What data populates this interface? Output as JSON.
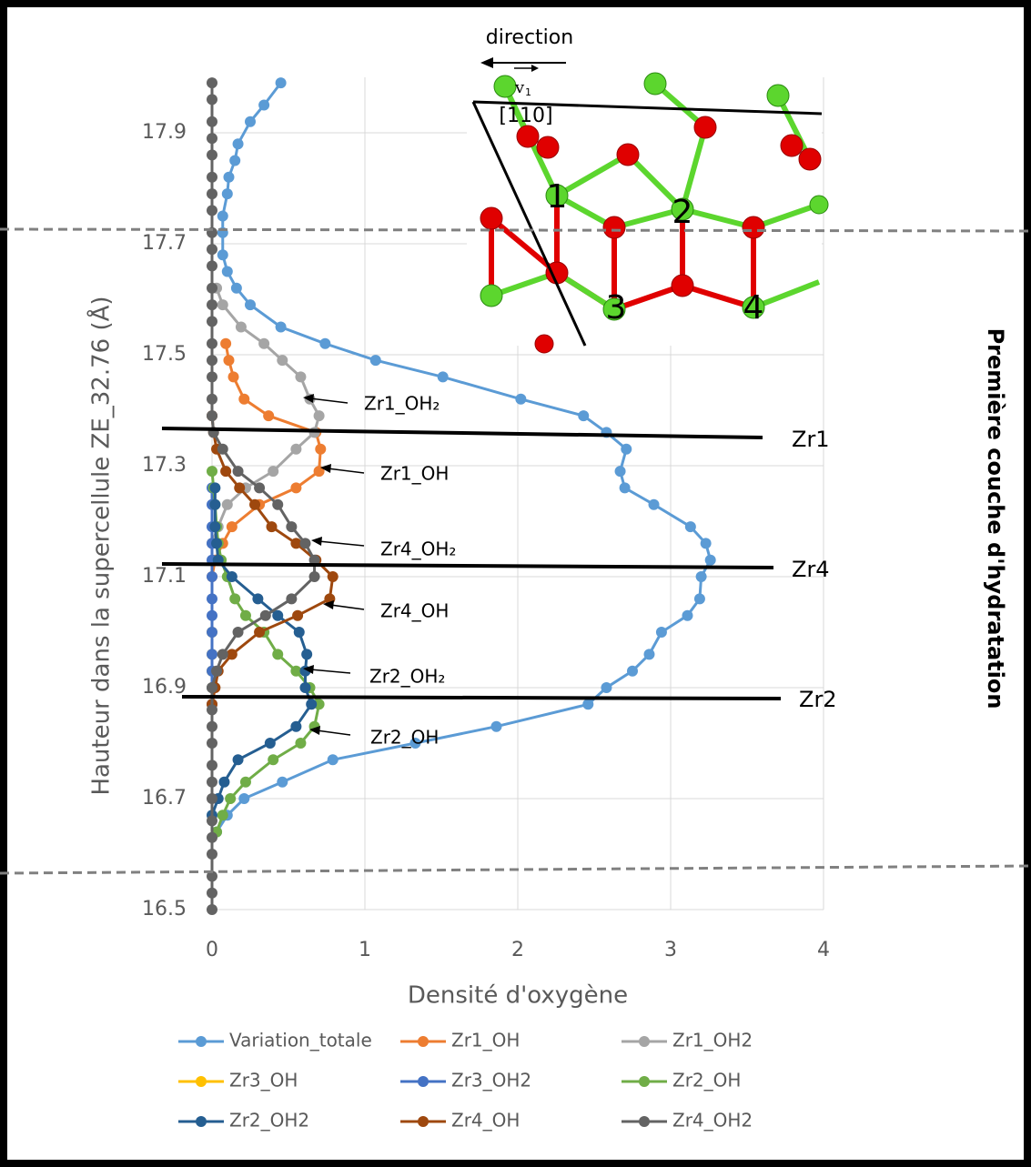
{
  "chart_data": {
    "type": "line",
    "x_label": "Densité d'oxygène",
    "y_label": "Hauteur dans la supercellule ZE_32.76 (Å)",
    "side_label": "Première couche d'hydratation",
    "xlim": [
      0,
      4
    ],
    "xticks": [
      0,
      1,
      2,
      3,
      4
    ],
    "ylim": [
      16.5,
      18.0
    ],
    "yticks": [
      16.5,
      16.7,
      16.9,
      17.1,
      17.3,
      17.5,
      17.7,
      17.9
    ],
    "grid": true,
    "series": [
      {
        "name": "Variation_totale",
        "color": "#5b9bd5",
        "y": [
          17.99,
          17.95,
          17.92,
          17.88,
          17.85,
          17.82,
          17.79,
          17.75,
          17.72,
          17.68,
          17.65,
          17.62,
          17.59,
          17.55,
          17.52,
          17.49,
          17.46,
          17.42,
          17.39,
          17.36,
          17.33,
          17.29,
          17.26,
          17.23,
          17.19,
          17.16,
          17.13,
          17.1,
          17.06,
          17.03,
          17.0,
          16.96,
          16.93,
          16.9,
          16.87,
          16.83,
          16.8,
          16.77,
          16.73,
          16.7,
          16.67,
          16.64
        ],
        "x": [
          0.45,
          0.34,
          0.25,
          0.17,
          0.15,
          0.11,
          0.1,
          0.07,
          0.07,
          0.07,
          0.1,
          0.16,
          0.25,
          0.45,
          0.74,
          1.07,
          1.51,
          2.02,
          2.43,
          2.58,
          2.71,
          2.67,
          2.7,
          2.89,
          3.13,
          3.23,
          3.26,
          3.2,
          3.19,
          3.11,
          2.94,
          2.86,
          2.75,
          2.58,
          2.46,
          1.86,
          1.33,
          0.79,
          0.46,
          0.21,
          0.1,
          0.03
        ]
      },
      {
        "name": "Zr1_OH",
        "color": "#ed7d31",
        "y": [
          17.52,
          17.49,
          17.46,
          17.42,
          17.39,
          17.36,
          17.33,
          17.29,
          17.26,
          17.23,
          17.19,
          17.16,
          17.13,
          17.1
        ],
        "x": [
          0.09,
          0.11,
          0.14,
          0.21,
          0.37,
          0.68,
          0.71,
          0.7,
          0.55,
          0.31,
          0.13,
          0.07,
          0.02,
          0
        ]
      },
      {
        "name": "Zr1_OH2",
        "color": "#a5a5a5",
        "y": [
          17.62,
          17.59,
          17.55,
          17.52,
          17.49,
          17.46,
          17.42,
          17.39,
          17.36,
          17.33,
          17.29,
          17.26,
          17.23,
          17.19,
          17.16
        ],
        "x": [
          0.03,
          0.07,
          0.19,
          0.34,
          0.46,
          0.58,
          0.64,
          0.7,
          0.67,
          0.55,
          0.4,
          0.22,
          0.1,
          0.04,
          0
        ]
      },
      {
        "name": "Zr3_OH",
        "color": "#ffc000",
        "y": [
          17.0,
          16.96,
          16.93,
          16.9
        ],
        "x": [
          0,
          0,
          0,
          0
        ]
      },
      {
        "name": "Zr3_OH2",
        "color": "#4472c4",
        "y": [
          17.26,
          17.23,
          17.19,
          17.16,
          17.13,
          17.1,
          17.06,
          17.03,
          17.0,
          16.96,
          16.93,
          16.9,
          16.87
        ],
        "x": [
          0,
          0,
          0,
          0,
          0,
          0,
          0,
          0,
          0,
          0,
          0,
          0,
          0
        ]
      },
      {
        "name": "Zr2_OH",
        "color": "#70ad47",
        "y": [
          17.29,
          17.26,
          17.23,
          17.19,
          17.16,
          17.13,
          17.1,
          17.06,
          17.03,
          17.0,
          16.96,
          16.93,
          16.9,
          16.87,
          16.83,
          16.8,
          16.77,
          16.73,
          16.7,
          16.67,
          16.64
        ],
        "x": [
          0,
          0.01,
          0.02,
          0.03,
          0.04,
          0.06,
          0.1,
          0.15,
          0.22,
          0.34,
          0.43,
          0.55,
          0.64,
          0.7,
          0.67,
          0.58,
          0.4,
          0.22,
          0.12,
          0.07,
          0.03
        ]
      },
      {
        "name": "Zr2_OH2",
        "color": "#255e91",
        "y": [
          17.26,
          17.23,
          17.19,
          17.16,
          17.13,
          17.1,
          17.06,
          17.03,
          17.0,
          16.96,
          16.93,
          16.9,
          16.87,
          16.83,
          16.8,
          16.77,
          16.73,
          16.7,
          16.67
        ],
        "x": [
          0.02,
          0.02,
          0.02,
          0.03,
          0.04,
          0.13,
          0.3,
          0.43,
          0.57,
          0.62,
          0.61,
          0.61,
          0.65,
          0.55,
          0.38,
          0.17,
          0.08,
          0.04,
          0
        ]
      },
      {
        "name": "Zr4_OH",
        "color": "#9e480e",
        "y": [
          17.39,
          17.36,
          17.33,
          17.29,
          17.26,
          17.23,
          17.19,
          17.16,
          17.13,
          17.1,
          17.06,
          17.03,
          17.0,
          16.96,
          16.93,
          16.9,
          16.87
        ],
        "x": [
          0,
          0.01,
          0.03,
          0.09,
          0.18,
          0.28,
          0.39,
          0.55,
          0.68,
          0.79,
          0.77,
          0.56,
          0.31,
          0.13,
          0.04,
          0.02,
          0
        ]
      },
      {
        "name": "Zr4_OH2",
        "color": "#636363",
        "y": [
          16.5,
          16.53,
          16.56,
          16.6,
          16.63,
          16.66,
          16.7,
          16.73,
          16.76,
          16.8,
          16.83,
          16.86,
          16.9,
          16.93,
          16.96,
          17.0,
          17.03,
          17.06,
          17.1,
          17.13,
          17.16,
          17.19,
          17.23,
          17.26,
          17.29,
          17.33,
          17.36,
          17.39,
          17.42,
          17.46,
          17.49,
          17.52,
          17.56,
          17.59,
          17.62,
          17.66,
          17.69,
          17.72,
          17.76,
          17.79,
          17.82,
          17.86,
          17.89,
          17.92,
          17.96,
          17.99
        ],
        "x": [
          0,
          0,
          0,
          0,
          0,
          0,
          0,
          0,
          0,
          0,
          0,
          0,
          0,
          0.03,
          0.07,
          0.17,
          0.35,
          0.52,
          0.67,
          0.67,
          0.61,
          0.52,
          0.43,
          0.31,
          0.17,
          0.07,
          0.01,
          0,
          0,
          0,
          0,
          0,
          0,
          0,
          0,
          0,
          0,
          0,
          0,
          0,
          0,
          0,
          0,
          0,
          0,
          0
        ]
      }
    ],
    "annotations": [
      "Zr1_OH₂",
      "Zr1_OH",
      "Zr4_OH₂",
      "Zr4_OH",
      "Zr2_OH₂",
      "Zr2_OH",
      "Zr1",
      "Zr4",
      "Zr2"
    ],
    "inset": {
      "direction": "direction",
      "vector": "v",
      "vector_index": "1",
      "plane": "[110]",
      "sites": [
        "1",
        "2",
        "3",
        "4"
      ]
    }
  }
}
